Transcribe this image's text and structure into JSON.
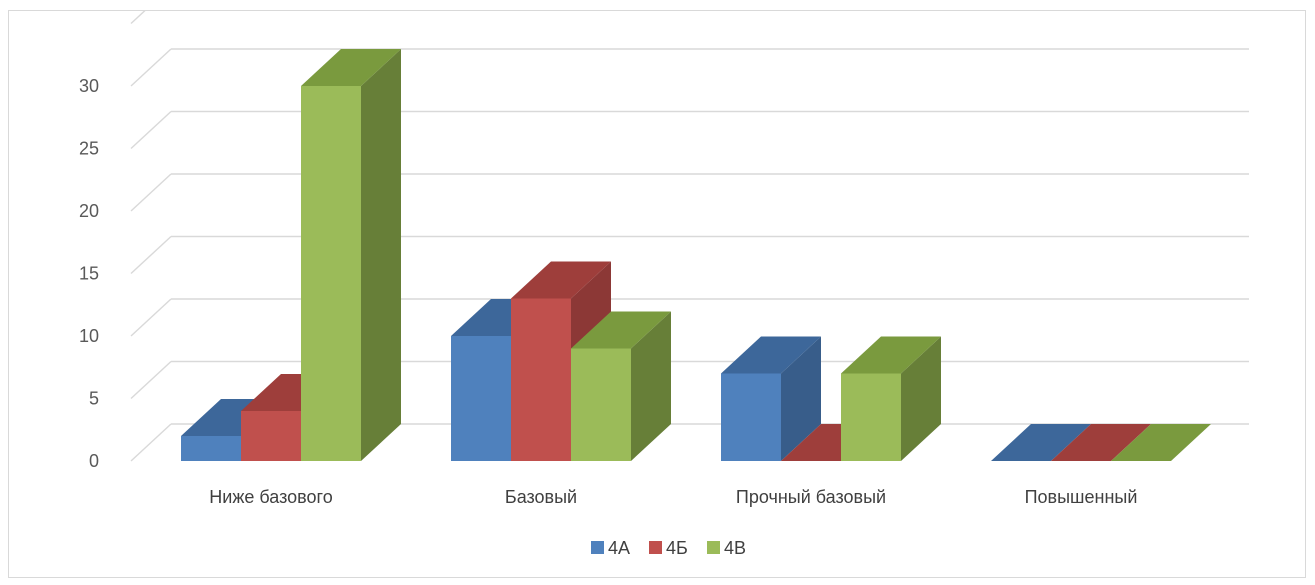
{
  "chart_data": {
    "type": "bar",
    "style": "3d-clustered-column",
    "categories": [
      "Ниже базового",
      "Базовый",
      "Прочный базовый",
      "Повышенный"
    ],
    "series": [
      {
        "name": "4А",
        "values": [
          2,
          10,
          7,
          0
        ],
        "color": "#4f81bd",
        "side": "#385d8a",
        "top": "#3d679a"
      },
      {
        "name": "4Б",
        "values": [
          4,
          13,
          0,
          0
        ],
        "color": "#c0504d",
        "side": "#8c3836",
        "top": "#9e3e3b"
      },
      {
        "name": "4В",
        "values": [
          30,
          9,
          7,
          0
        ],
        "color": "#9bbb59",
        "side": "#677f38",
        "top": "#7a9a3e"
      }
    ],
    "y_ticks": [
      "0",
      "5",
      "10",
      "15",
      "20",
      "25",
      "30"
    ],
    "ylim": [
      0,
      35
    ],
    "grid": true,
    "legend": "bottom",
    "title": "",
    "xlabel": "",
    "ylabel": ""
  }
}
